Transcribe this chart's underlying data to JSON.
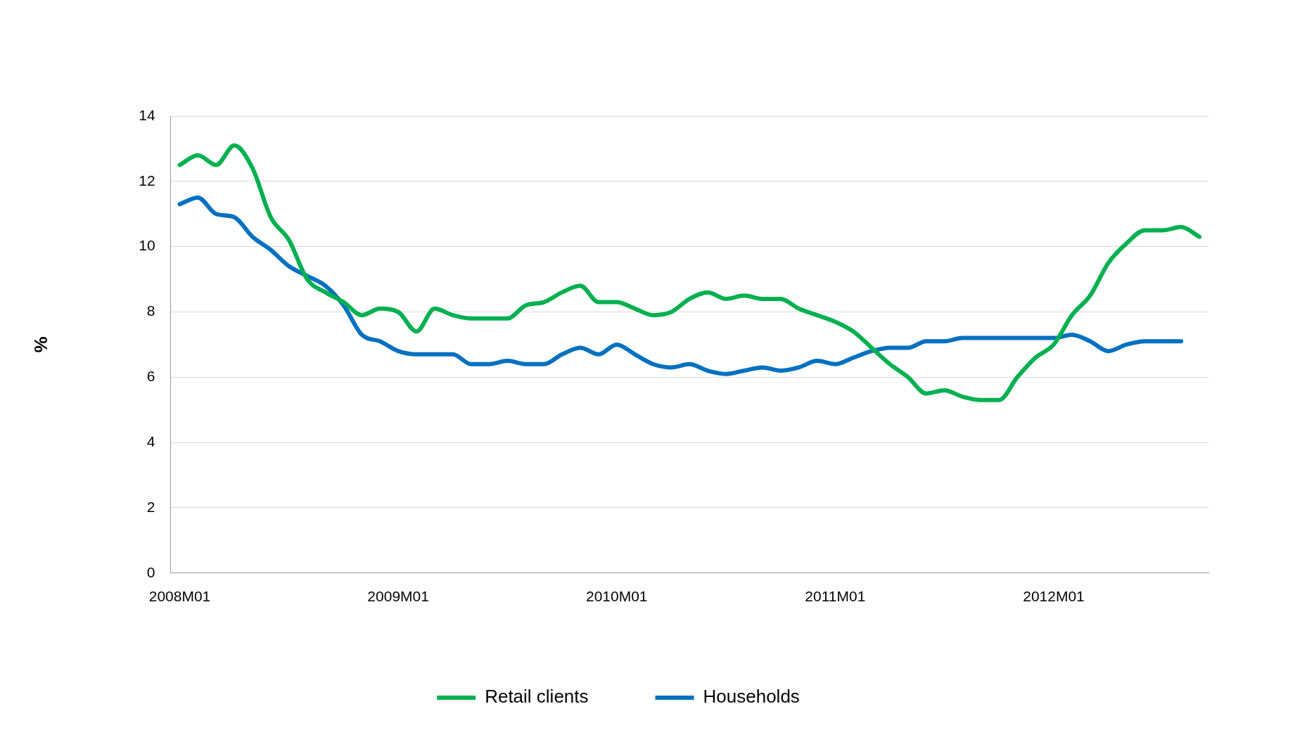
{
  "chart_data": {
    "type": "line",
    "ylabel": "%",
    "categories": [
      "2008M01",
      null,
      null,
      null,
      null,
      null,
      null,
      null,
      null,
      null,
      null,
      null,
      "2009M01",
      null,
      null,
      null,
      null,
      null,
      null,
      null,
      null,
      null,
      null,
      null,
      "2010M01",
      null,
      null,
      null,
      null,
      null,
      null,
      null,
      null,
      null,
      null,
      null,
      "2011M01",
      null,
      null,
      null,
      null,
      null,
      null,
      null,
      null,
      null,
      null,
      null,
      "2012M01",
      null,
      null,
      null,
      null,
      null,
      null,
      null,
      null
    ],
    "series": [
      {
        "name": "Retail clients",
        "color": "#00b050",
        "values": [
          12.5,
          12.8,
          12.5,
          13.1,
          12.4,
          10.9,
          10.2,
          9.0,
          8.6,
          8.3,
          7.9,
          8.1,
          8.0,
          7.4,
          8.1,
          7.9,
          7.8,
          7.8,
          7.8,
          8.2,
          8.3,
          8.6,
          8.8,
          8.3,
          8.3,
          8.1,
          7.9,
          8.0,
          8.4,
          8.6,
          8.4,
          8.5,
          8.4,
          8.4,
          8.1,
          7.9,
          7.7,
          7.4,
          6.9,
          6.4,
          6.0,
          5.5,
          5.6,
          5.4,
          5.3,
          5.3,
          6.0,
          6.6,
          7.0,
          7.9,
          8.5,
          9.5,
          10.1,
          10.5,
          10.5,
          10.6,
          10.3
        ]
      },
      {
        "name": "Households",
        "color": "#0070c0",
        "values": [
          11.3,
          11.5,
          11.0,
          10.9,
          10.3,
          9.9,
          9.4,
          9.1,
          8.8,
          8.2,
          7.3,
          7.1,
          6.8,
          6.7,
          6.7,
          6.7,
          6.4,
          6.4,
          6.5,
          6.4,
          6.4,
          6.7,
          6.9,
          6.7,
          7.0,
          6.7,
          6.4,
          6.3,
          6.4,
          6.2,
          6.1,
          6.2,
          6.3,
          6.2,
          6.3,
          6.5,
          6.4,
          6.6,
          6.8,
          6.9,
          6.9,
          7.1,
          7.1,
          7.2,
          7.2,
          7.2,
          7.2,
          7.2,
          7.2,
          7.3,
          7.1,
          6.8,
          7.0,
          7.1,
          7.1,
          7.1,
          null
        ]
      }
    ],
    "ylim": [
      0,
      14
    ],
    "yticks": [
      0,
      2,
      4,
      6,
      8,
      10,
      12,
      14
    ],
    "grid": "y",
    "legend": "bottom",
    "marker": "none",
    "line_style": "solid"
  }
}
